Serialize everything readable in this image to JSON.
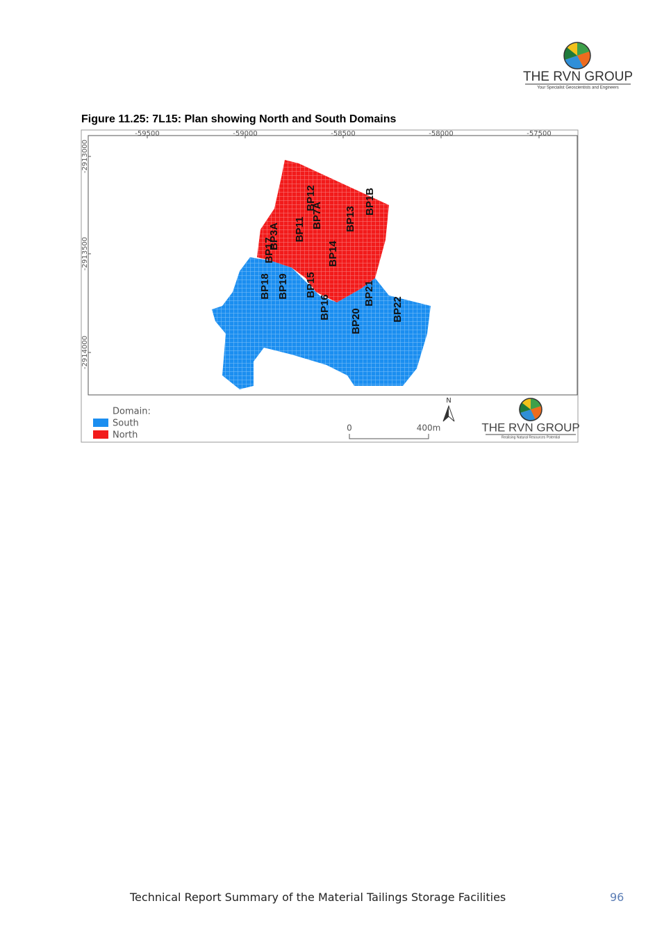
{
  "header": {
    "logo": {
      "name": "THE RVN GROUP",
      "tagline": "Your Specialist Geoscientists and Engineers"
    }
  },
  "figure": {
    "caption": "Figure 11.25: 7L15: Plan showing North and South Domains",
    "x_ticks": [
      -59500,
      -59000,
      -58500,
      -58000,
      -57500
    ],
    "y_ticks": [
      -2913000,
      -2913500,
      -2914000
    ],
    "boreholes": [
      "BP18",
      "BP19",
      "BP15",
      "BP16",
      "BP20",
      "BP21",
      "BP22",
      "BP11",
      "BP12",
      "BP7A",
      "BP13",
      "BP1B",
      "BP14",
      "BP3A",
      "BP17"
    ],
    "legend": {
      "title": "Domain:",
      "items": [
        {
          "label": "South",
          "color": "#1b8ef0"
        },
        {
          "label": "North",
          "color": "#f21b1b"
        }
      ]
    },
    "scale_bar": {
      "start": "0",
      "end": "400m"
    },
    "north_arrow": "N",
    "logo": {
      "name": "THE RVN GROUP",
      "tagline": "Realising Natural Resources Potential"
    }
  },
  "footer": {
    "text": "Technical Report Summary of the Material Tailings Storage Facilities",
    "page_number": "96"
  }
}
